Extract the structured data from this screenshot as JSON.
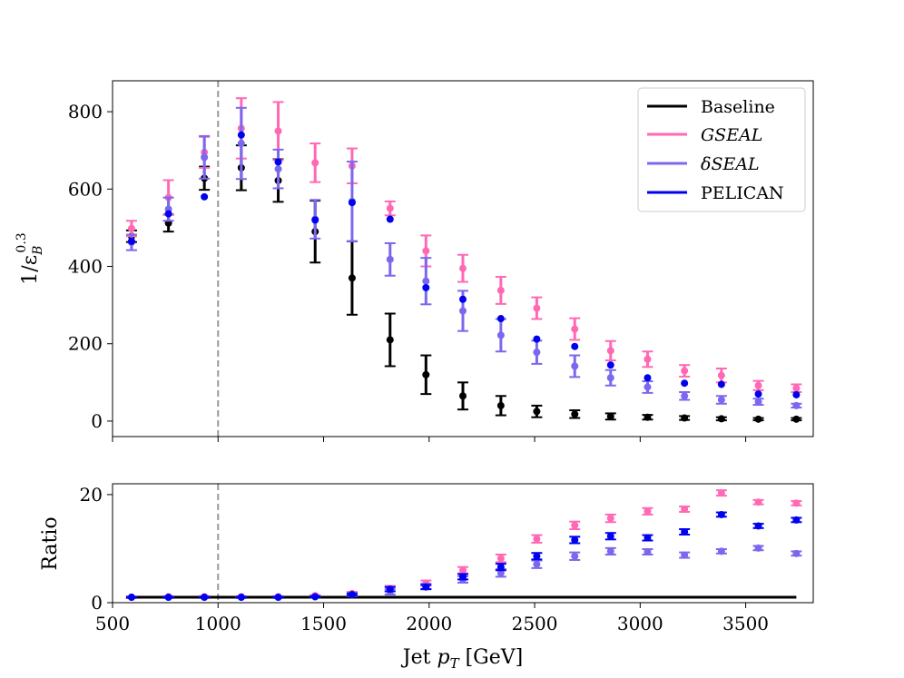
{
  "colors": {
    "baseline": "#000000",
    "gseal": "#ff69b4",
    "dseal": "#7b68ee",
    "pelican": "#0000ee",
    "vline": "#999999"
  },
  "chart_data": [
    {
      "type": "scatter",
      "panel": "main",
      "ylabel_main": "1/ε",
      "ylabel_sub": "B",
      "ylabel_sup": "0.3",
      "xlim": [
        500,
        3820
      ],
      "ylim": [
        -40,
        880
      ],
      "yticks": [
        0,
        200,
        400,
        600,
        800
      ],
      "ytick_labels": [
        "0",
        "200",
        "400",
        "600",
        "800"
      ],
      "vline_x": 1000,
      "legend": {
        "position": "top-right",
        "entries": [
          {
            "key": "baseline",
            "label": "Baseline",
            "italic": false
          },
          {
            "key": "gseal",
            "label": "GSEAL",
            "italic": true
          },
          {
            "key": "dseal",
            "label": "δSEAL",
            "italic": true
          },
          {
            "key": "pelican",
            "label": "PELICAN",
            "italic": false
          }
        ]
      },
      "x": [
        590,
        765,
        935,
        1110,
        1285,
        1460,
        1635,
        1815,
        1985,
        2160,
        2340,
        2510,
        2690,
        2860,
        3035,
        3210,
        3385,
        3560,
        3740
      ],
      "series": [
        {
          "key": "baseline",
          "name": "Baseline",
          "values": [
            478,
            512,
            628,
            655,
            622,
            490,
            370,
            210,
            120,
            65,
            40,
            25,
            18,
            12,
            10,
            8,
            6,
            5,
            5
          ],
          "errors": [
            15,
            22,
            30,
            58,
            55,
            80,
            95,
            68,
            50,
            35,
            25,
            15,
            10,
            8,
            6,
            5,
            4,
            3,
            3
          ],
          "error_bars": true
        },
        {
          "key": "gseal",
          "name": "GSEAL",
          "values": [
            498,
            578,
            695,
            757,
            750,
            668,
            660,
            550,
            440,
            395,
            338,
            292,
            238,
            182,
            160,
            130,
            118,
            92,
            85
          ],
          "errors": [
            20,
            45,
            40,
            78,
            75,
            50,
            45,
            18,
            40,
            35,
            35,
            28,
            28,
            25,
            20,
            15,
            18,
            12,
            10
          ],
          "error_bars": true
        },
        {
          "key": "dseal",
          "name": "δSEAL",
          "values": [
            462,
            548,
            682,
            718,
            652,
            522,
            568,
            418,
            362,
            285,
            222,
            178,
            142,
            112,
            88,
            65,
            55,
            50,
            40
          ],
          "errors": [
            20,
            30,
            55,
            92,
            50,
            50,
            103,
            42,
            60,
            52,
            42,
            30,
            28,
            20,
            15,
            10,
            10,
            8,
            5
          ],
          "error_bars": true
        },
        {
          "key": "pelican",
          "name": "PELICAN",
          "values": [
            465,
            536,
            580,
            740,
            670,
            520,
            565,
            522,
            345,
            315,
            265,
            212,
            193,
            145,
            112,
            98,
            95,
            70,
            68
          ],
          "errors": [],
          "error_bars": false
        }
      ]
    },
    {
      "type": "scatter",
      "panel": "ratio",
      "title": "",
      "xlabel_main": "Jet ",
      "xlabel_var": "p",
      "xlabel_sub": "T",
      "xlabel_unit": " [GeV]",
      "ylabel": "Ratio",
      "xlim": [
        500,
        3820
      ],
      "ylim": [
        0,
        22
      ],
      "xticks": [
        500,
        1000,
        1500,
        2000,
        2500,
        3000,
        3500
      ],
      "xtick_labels": [
        "500",
        "1000",
        "1500",
        "2000",
        "2500",
        "3000",
        "3500"
      ],
      "yticks": [
        0,
        20
      ],
      "ytick_labels": [
        "0",
        "20"
      ],
      "vline_x": 1000,
      "x": [
        590,
        765,
        935,
        1110,
        1285,
        1460,
        1635,
        1815,
        1985,
        2160,
        2340,
        2510,
        2690,
        2860,
        3035,
        3210,
        3385,
        3560,
        3740
      ],
      "baseline_line": {
        "key": "baseline",
        "y": 1,
        "x_range": [
          590,
          3740
        ]
      },
      "series": [
        {
          "key": "gseal",
          "name": "GSEAL",
          "values": [
            1.0,
            1.1,
            1.1,
            1.1,
            1.1,
            1.3,
            1.7,
            2.6,
            3.6,
            6.0,
            8.2,
            11.8,
            14.3,
            15.6,
            16.9,
            17.3,
            20.3,
            18.6,
            18.4
          ],
          "errors": [
            0.1,
            0.1,
            0.1,
            0.1,
            0.1,
            0.1,
            0.3,
            0.5,
            0.5,
            0.6,
            0.7,
            0.7,
            0.7,
            0.7,
            0.6,
            0.5,
            0.5,
            0.4,
            0.4
          ]
        },
        {
          "key": "dseal",
          "name": "δSEAL",
          "values": [
            1.0,
            1.0,
            1.0,
            1.0,
            1.0,
            1.1,
            1.5,
            2.0,
            3.0,
            4.3,
            5.5,
            7.1,
            8.6,
            9.5,
            9.4,
            8.8,
            9.5,
            10.1,
            9.1
          ],
          "errors": [
            0.1,
            0.1,
            0.1,
            0.1,
            0.1,
            0.1,
            0.3,
            0.5,
            0.5,
            0.6,
            0.7,
            0.7,
            0.7,
            0.6,
            0.5,
            0.5,
            0.4,
            0.4,
            0.4
          ]
        },
        {
          "key": "pelican",
          "name": "PELICAN",
          "values": [
            1.0,
            1.0,
            1.0,
            1.0,
            1.0,
            1.1,
            1.5,
            2.5,
            2.9,
            4.8,
            6.6,
            8.6,
            11.6,
            12.3,
            12.0,
            13.1,
            16.3,
            14.2,
            15.3
          ],
          "errors": [
            0.1,
            0.1,
            0.1,
            0.1,
            0.1,
            0.1,
            0.2,
            0.4,
            0.4,
            0.5,
            0.6,
            0.6,
            0.6,
            0.6,
            0.5,
            0.5,
            0.4,
            0.4,
            0.4
          ]
        }
      ]
    }
  ]
}
